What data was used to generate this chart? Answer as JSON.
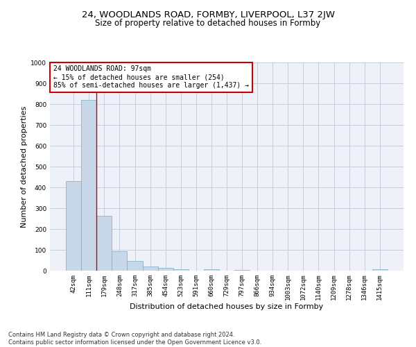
{
  "title_line1": "24, WOODLANDS ROAD, FORMBY, LIVERPOOL, L37 2JW",
  "title_line2": "Size of property relative to detached houses in Formby",
  "xlabel": "Distribution of detached houses by size in Formby",
  "ylabel": "Number of detached properties",
  "footer_line1": "Contains HM Land Registry data © Crown copyright and database right 2024.",
  "footer_line2": "Contains public sector information licensed under the Open Government Licence v3.0.",
  "categories": [
    "42sqm",
    "111sqm",
    "179sqm",
    "248sqm",
    "317sqm",
    "385sqm",
    "454sqm",
    "523sqm",
    "591sqm",
    "660sqm",
    "729sqm",
    "797sqm",
    "866sqm",
    "934sqm",
    "1003sqm",
    "1072sqm",
    "1140sqm",
    "1209sqm",
    "1278sqm",
    "1346sqm",
    "1415sqm"
  ],
  "values": [
    430,
    820,
    265,
    93,
    47,
    20,
    15,
    8,
    0,
    8,
    0,
    5,
    0,
    0,
    0,
    0,
    0,
    0,
    0,
    0,
    8
  ],
  "bar_color": "#c8d8e8",
  "bar_edge_color": "#7aaac8",
  "annotation_text_line1": "24 WOODLANDS ROAD: 97sqm",
  "annotation_text_line2": "← 15% of detached houses are smaller (254)",
  "annotation_text_line3": "85% of semi-detached houses are larger (1,437) →",
  "annotation_box_color": "#ffffff",
  "annotation_box_edge_color": "#cc0000",
  "vline_color": "#cc0000",
  "vline_x": 1.5,
  "ylim": [
    0,
    1000
  ],
  "yticks": [
    0,
    100,
    200,
    300,
    400,
    500,
    600,
    700,
    800,
    900,
    1000
  ],
  "grid_color": "#c0c8d8",
  "bg_color": "#eef2f8",
  "title_fontsize": 9.5,
  "subtitle_fontsize": 8.5,
  "axis_label_fontsize": 8,
  "tick_fontsize": 6.5,
  "annotation_fontsize": 7,
  "footer_fontsize": 6
}
